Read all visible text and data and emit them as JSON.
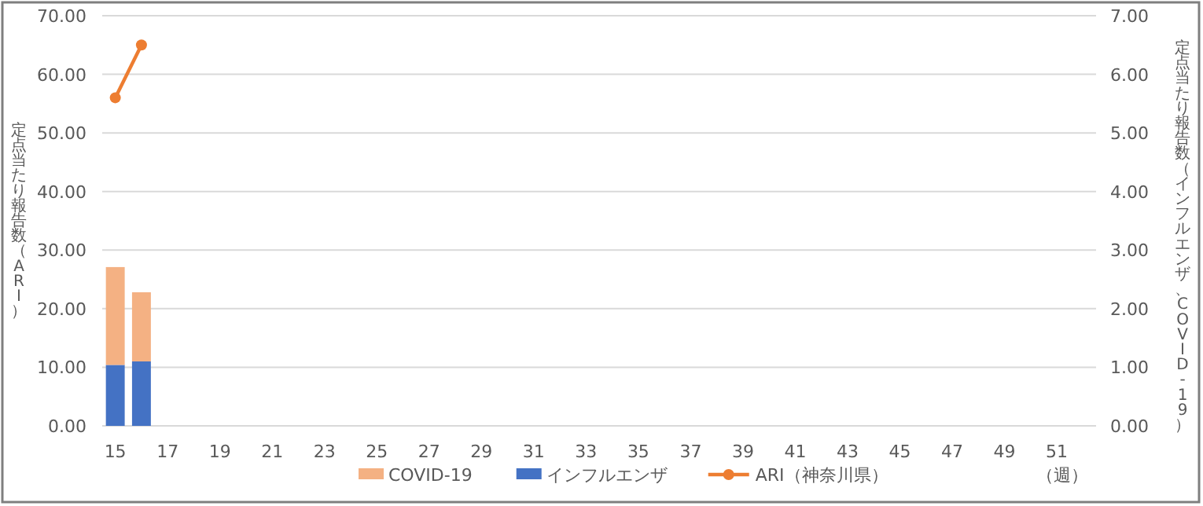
{
  "chart_data": {
    "type": "bar",
    "stacked": true,
    "categories": [
      "15",
      null,
      "17",
      null,
      "19",
      null,
      "21",
      null,
      "23",
      null,
      "25",
      null,
      "27",
      null,
      "29",
      null,
      "31",
      null,
      "33",
      null,
      "35",
      null,
      "37",
      null,
      "39",
      null,
      "41",
      null,
      "43",
      null,
      "45",
      null,
      "47",
      null,
      "49",
      null,
      "51",
      null
    ],
    "series": [
      {
        "name": "インフルエンザ",
        "axis": "y2",
        "color": "#4472c4",
        "values": [
          1.04,
          1.1,
          null,
          null,
          null,
          null,
          null,
          null,
          null,
          null,
          null,
          null,
          null,
          null,
          null,
          null,
          null,
          null,
          null,
          null,
          null,
          null,
          null,
          null,
          null,
          null,
          null,
          null,
          null,
          null,
          null,
          null,
          null,
          null,
          null,
          null,
          null,
          null
        ]
      },
      {
        "name": "COVID-19",
        "axis": "y2",
        "color": "#f4b183",
        "values": [
          1.67,
          1.18,
          null,
          null,
          null,
          null,
          null,
          null,
          null,
          null,
          null,
          null,
          null,
          null,
          null,
          null,
          null,
          null,
          null,
          null,
          null,
          null,
          null,
          null,
          null,
          null,
          null,
          null,
          null,
          null,
          null,
          null,
          null,
          null,
          null,
          null,
          null,
          null
        ]
      },
      {
        "name": "ARI（神奈川県）",
        "type": "line",
        "color": "#ed7d31",
        "marker": "circle",
        "values": [
          56.0,
          65.0,
          null,
          null,
          null,
          null,
          null,
          null,
          null,
          null,
          null,
          null,
          null,
          null,
          null,
          null,
          null,
          null,
          null,
          null,
          null,
          null,
          null,
          null,
          null,
          null,
          null,
          null,
          null,
          null,
          null,
          null,
          null,
          null,
          null,
          null,
          null,
          null
        ]
      }
    ],
    "ylabel": "定点当たり報告数（ARI）",
    "y2label": "定点当たり報告数（インフルエンザ、COVID-19）",
    "xlabel": "（週）",
    "ylim": [
      0,
      70
    ],
    "yticks": [
      {
        "value": 0,
        "label": "0.00"
      },
      {
        "value": 10,
        "label": "10.00"
      },
      {
        "value": 20,
        "label": "20.00"
      },
      {
        "value": 30,
        "label": "30.00"
      },
      {
        "value": 40,
        "label": "40.00"
      },
      {
        "value": 50,
        "label": "50.00"
      },
      {
        "value": 60,
        "label": "60.00"
      },
      {
        "value": 70,
        "label": "70.00"
      }
    ],
    "y2lim": [
      0,
      7
    ],
    "y2ticks": [
      {
        "value": 0,
        "label": "0.00"
      },
      {
        "value": 1,
        "label": "1.00"
      },
      {
        "value": 2,
        "label": "2.00"
      },
      {
        "value": 3,
        "label": "3.00"
      },
      {
        "value": 4,
        "label": "4.00"
      },
      {
        "value": 5,
        "label": "5.00"
      },
      {
        "value": 6,
        "label": "6.00"
      },
      {
        "value": 7,
        "label": "7.00"
      }
    ],
    "grid": "y",
    "legend": "bottom"
  }
}
